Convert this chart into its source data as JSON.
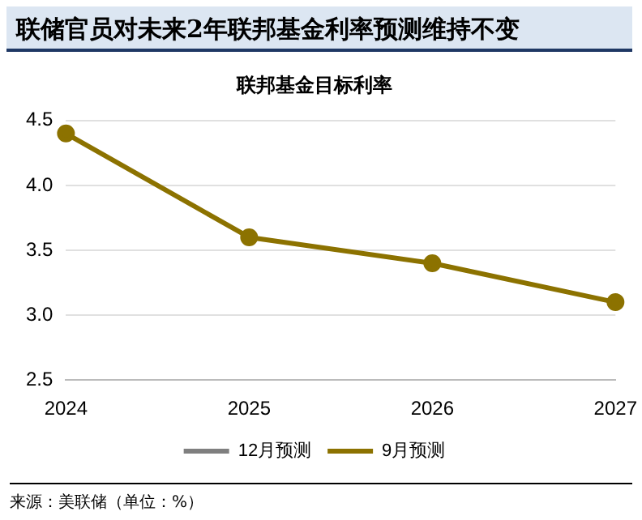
{
  "chart_data": {
    "type": "line",
    "title": "联储官员对未来2年联邦基金利率预测维持不变",
    "subtitle": "联邦基金目标利率",
    "categories": [
      "2024",
      "2025",
      "2026",
      "2027"
    ],
    "series": [
      {
        "name": "12月预测",
        "color": "#7f7f7f",
        "values": [
          null,
          null,
          null,
          null
        ]
      },
      {
        "name": "9月预测",
        "color": "#8c7200",
        "values": [
          4.4,
          3.6,
          3.4,
          3.1
        ]
      }
    ],
    "ylim": [
      2.5,
      4.5
    ],
    "yticks": [
      2.5,
      {
        "value": 3,
        "label": "3.0"
      },
      3.5,
      {
        "value": 4,
        "label": "4.0"
      },
      4.5
    ],
    "grid": "y",
    "legend": "bottom",
    "marker": "circle",
    "line_style": "solid",
    "annotations": [
      "来源：美联储（单位：%）"
    ]
  }
}
